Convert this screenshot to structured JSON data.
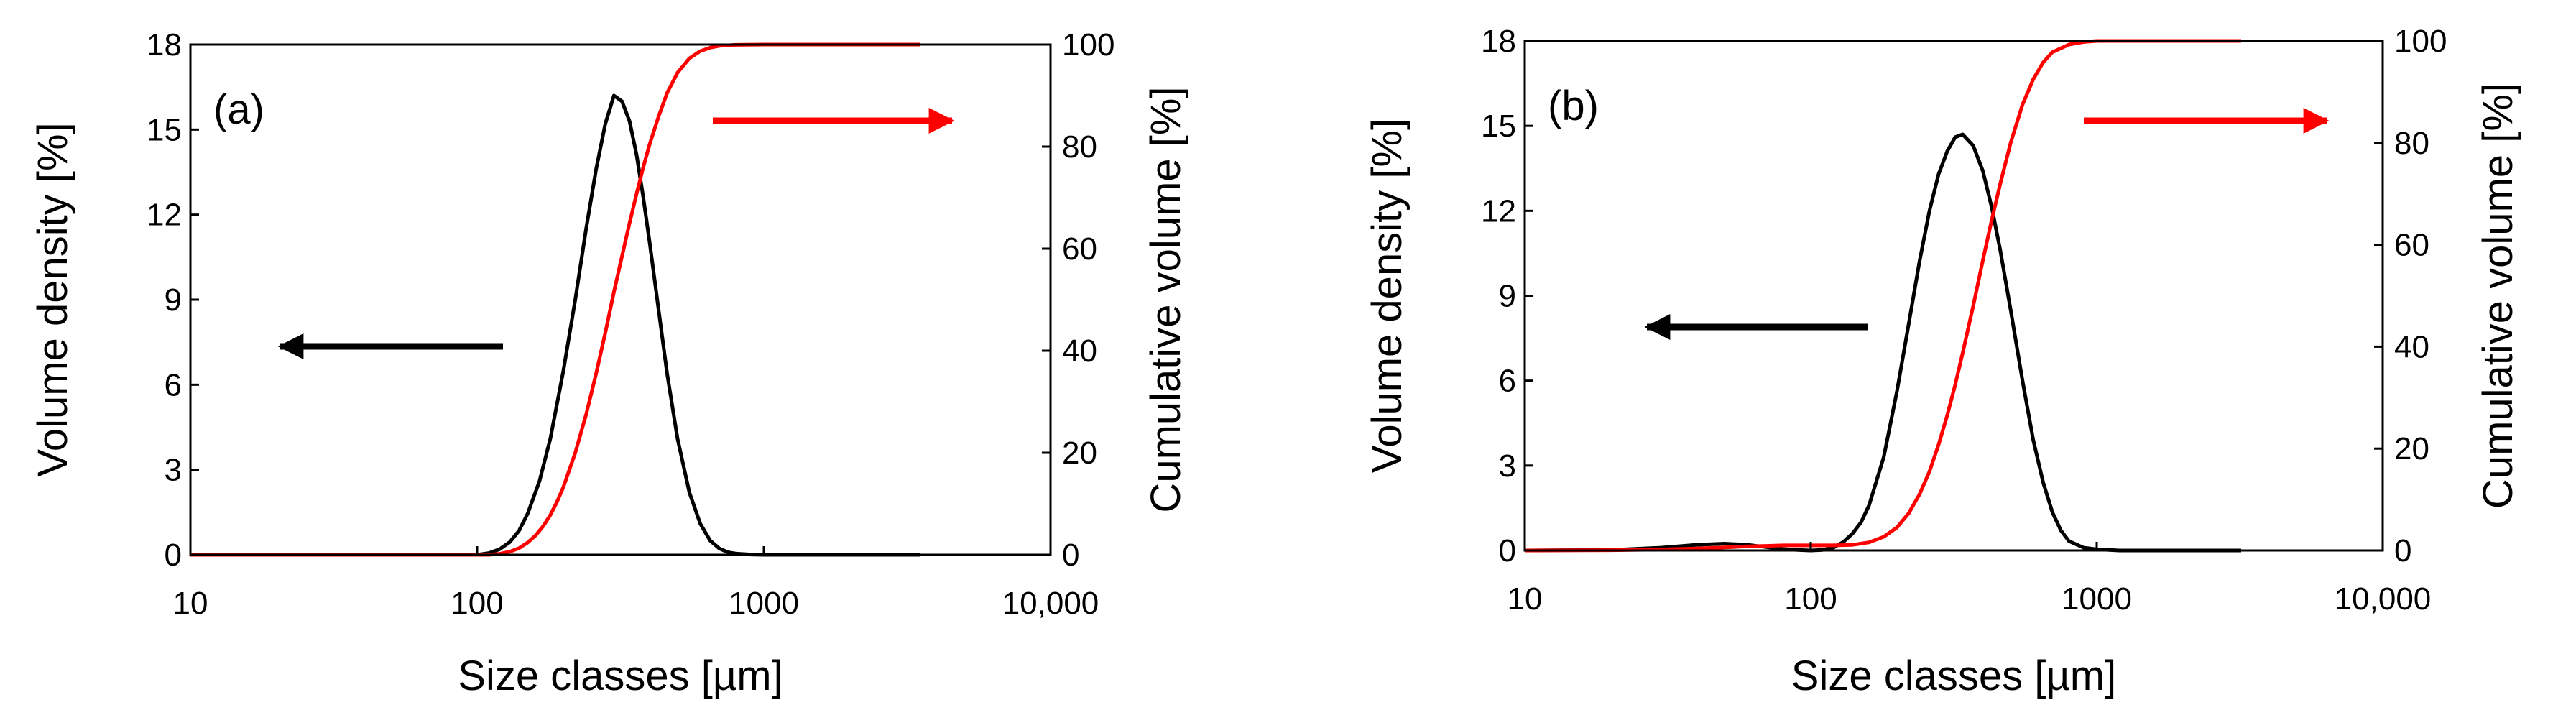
{
  "chart_data": [
    {
      "type": "line",
      "panel_label": "(a)",
      "xlabel": "Size classes [µm]",
      "ylabel": "Volume density [%]",
      "y2label": "Cumulative volume [%]",
      "xscale": "log",
      "xlim": [
        10,
        10000
      ],
      "xticks": [
        10,
        100,
        1000,
        10000
      ],
      "xtick_labels": [
        "10",
        "100",
        "1000",
        "10,000"
      ],
      "ylim": [
        0,
        18
      ],
      "yticks": [
        0,
        3,
        6,
        9,
        12,
        15,
        18
      ],
      "y2lim": [
        0,
        100
      ],
      "y2ticks": [
        0,
        20,
        40,
        60,
        80,
        100
      ],
      "grid": false,
      "series": [
        {
          "axis": "left",
          "color": "#000000",
          "x": [
            10,
            50,
            100,
            110,
            120,
            130,
            140,
            150,
            165,
            180,
            200,
            220,
            240,
            260,
            280,
            300,
            320,
            340,
            360,
            380,
            400,
            430,
            460,
            500,
            550,
            600,
            650,
            700,
            750,
            800,
            900,
            1000,
            1500,
            2000,
            3500
          ],
          "y": [
            0,
            0,
            0,
            0.06,
            0.2,
            0.45,
            0.85,
            1.45,
            2.6,
            4.1,
            6.5,
            9.0,
            11.5,
            13.6,
            15.2,
            16.2,
            16.0,
            15.3,
            14.1,
            12.6,
            11.0,
            8.6,
            6.4,
            4.1,
            2.2,
            1.1,
            0.5,
            0.22,
            0.09,
            0.04,
            0.01,
            0,
            0,
            0,
            0
          ]
        },
        {
          "axis": "right",
          "color": "#ff0000",
          "x": [
            10,
            50,
            100,
            110,
            120,
            130,
            140,
            150,
            160,
            170,
            180,
            190,
            200,
            220,
            240,
            260,
            280,
            300,
            320,
            340,
            360,
            380,
            400,
            430,
            460,
            500,
            550,
            600,
            650,
            700,
            800,
            1000,
            2000,
            3500
          ],
          "y": [
            0,
            0,
            0,
            0,
            0.2,
            0.6,
            1.3,
            2.4,
            3.8,
            5.6,
            7.8,
            10.4,
            13.3,
            20.0,
            27.5,
            35.5,
            43.5,
            51.5,
            58.5,
            65.0,
            70.8,
            76.0,
            80.5,
            86.0,
            90.5,
            94.5,
            97.3,
            98.7,
            99.4,
            99.75,
            99.95,
            100,
            100,
            100
          ]
        }
      ],
      "annotations": [
        {
          "type": "arrow",
          "direction": "left",
          "color": "#000000",
          "points_to": "left axis"
        },
        {
          "type": "arrow",
          "direction": "right",
          "color": "#ff0000",
          "points_to": "right axis"
        }
      ]
    },
    {
      "type": "line",
      "panel_label": "(b)",
      "xlabel": "Size classes [µm]",
      "ylabel": "Volume density [%]",
      "y2label": "Cumulative volume [%]",
      "xscale": "log",
      "xlim": [
        10,
        10000
      ],
      "xticks": [
        10,
        100,
        1000,
        10000
      ],
      "xtick_labels": [
        "10",
        "100",
        "1000",
        "10,000"
      ],
      "ylim": [
        0,
        18
      ],
      "yticks": [
        0,
        3,
        6,
        9,
        12,
        15,
        18
      ],
      "y2lim": [
        0,
        100
      ],
      "y2ticks": [
        0,
        20,
        40,
        60,
        80,
        100
      ],
      "grid": false,
      "series": [
        {
          "axis": "left",
          "color": "#000000",
          "x": [
            10,
            20,
            30,
            40,
            50,
            60,
            70,
            80,
            90,
            100,
            110,
            120,
            130,
            140,
            150,
            160,
            180,
            200,
            220,
            240,
            260,
            280,
            300,
            320,
            340,
            370,
            400,
            430,
            460,
            500,
            550,
            600,
            650,
            700,
            750,
            800,
            900,
            1000,
            1200,
            1500,
            2000,
            3200
          ],
          "y": [
            0,
            0.02,
            0.1,
            0.2,
            0.24,
            0.2,
            0.12,
            0.05,
            0.02,
            0,
            0.02,
            0.1,
            0.3,
            0.6,
            1.0,
            1.6,
            3.3,
            5.6,
            8.0,
            10.2,
            12.0,
            13.3,
            14.1,
            14.6,
            14.7,
            14.3,
            13.4,
            12.1,
            10.6,
            8.5,
            6.0,
            3.9,
            2.4,
            1.35,
            0.7,
            0.33,
            0.1,
            0.04,
            0,
            0,
            0,
            0
          ]
        },
        {
          "axis": "right",
          "color": "#ff0000",
          "x": [
            10,
            20,
            30,
            40,
            50,
            60,
            70,
            80,
            90,
            100,
            120,
            140,
            160,
            180,
            200,
            220,
            240,
            260,
            280,
            300,
            320,
            340,
            370,
            400,
            430,
            460,
            500,
            550,
            600,
            650,
            700,
            800,
            900,
            1000,
            1200,
            2000,
            3200
          ],
          "y": [
            0,
            0.05,
            0.2,
            0.4,
            0.6,
            0.8,
            0.9,
            1.0,
            1.0,
            1.0,
            1.0,
            1.1,
            1.6,
            2.7,
            4.5,
            7.3,
            11.0,
            15.5,
            20.8,
            26.5,
            32.5,
            38.8,
            48.0,
            57.0,
            65.0,
            72.0,
            80.0,
            87.5,
            92.5,
            95.8,
            97.8,
            99.3,
            99.8,
            100,
            100,
            100,
            100
          ]
        }
      ],
      "annotations": [
        {
          "type": "arrow",
          "direction": "left",
          "color": "#000000",
          "points_to": "left axis"
        },
        {
          "type": "arrow",
          "direction": "right",
          "color": "#ff0000",
          "points_to": "right axis"
        }
      ]
    }
  ]
}
